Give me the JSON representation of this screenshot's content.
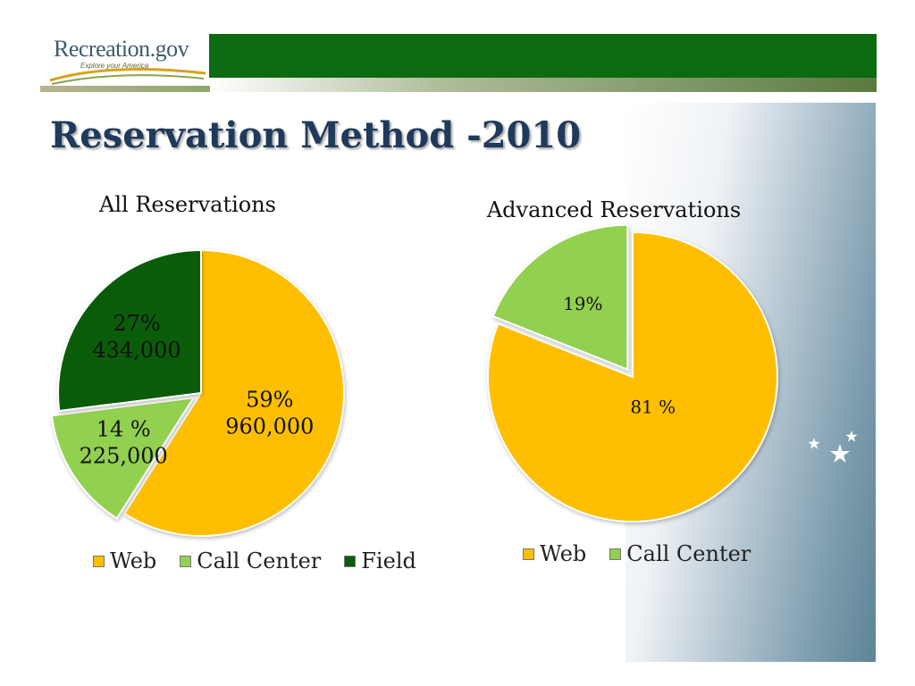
{
  "logo": {
    "text": "Recreation.gov",
    "tagline": "Explore your America"
  },
  "colors": {
    "web": "#ffbf00",
    "call_center": "#92d050",
    "field": "#0a5c0a",
    "header": "#0c6a10",
    "title": "#1f3a5a"
  },
  "page": {
    "title": "Reservation Method -2010"
  },
  "chart_data": [
    {
      "type": "pie",
      "title": "All Reservations",
      "start_angle": 0,
      "slices": [
        {
          "name": "Web",
          "value": 59,
          "label_lines": [
            "59%",
            "960,000"
          ],
          "color": "#ffbf00",
          "explode": 0
        },
        {
          "name": "Call Center",
          "value": 14,
          "label_lines": [
            "14 %",
            "225,000"
          ],
          "color": "#92d050",
          "explode": 1
        },
        {
          "name": "Field",
          "value": 27,
          "label_lines": [
            "27%",
            "434,000"
          ],
          "color": "#0a5c0a",
          "explode": 0
        }
      ],
      "legend": [
        "Web",
        "Call Center",
        "Field"
      ],
      "legend_position": "bottom"
    },
    {
      "type": "pie",
      "title": "Advanced Reservations",
      "start_angle": 0,
      "slices": [
        {
          "name": "Web",
          "value": 81,
          "label_lines": [
            "81 %"
          ],
          "color": "#ffbf00",
          "explode": 0
        },
        {
          "name": "Call Center",
          "value": 19,
          "label_lines": [
            "19%"
          ],
          "color": "#92d050",
          "explode": 1
        }
      ],
      "legend": [
        "Web",
        "Call Center"
      ],
      "legend_position": "bottom"
    }
  ]
}
